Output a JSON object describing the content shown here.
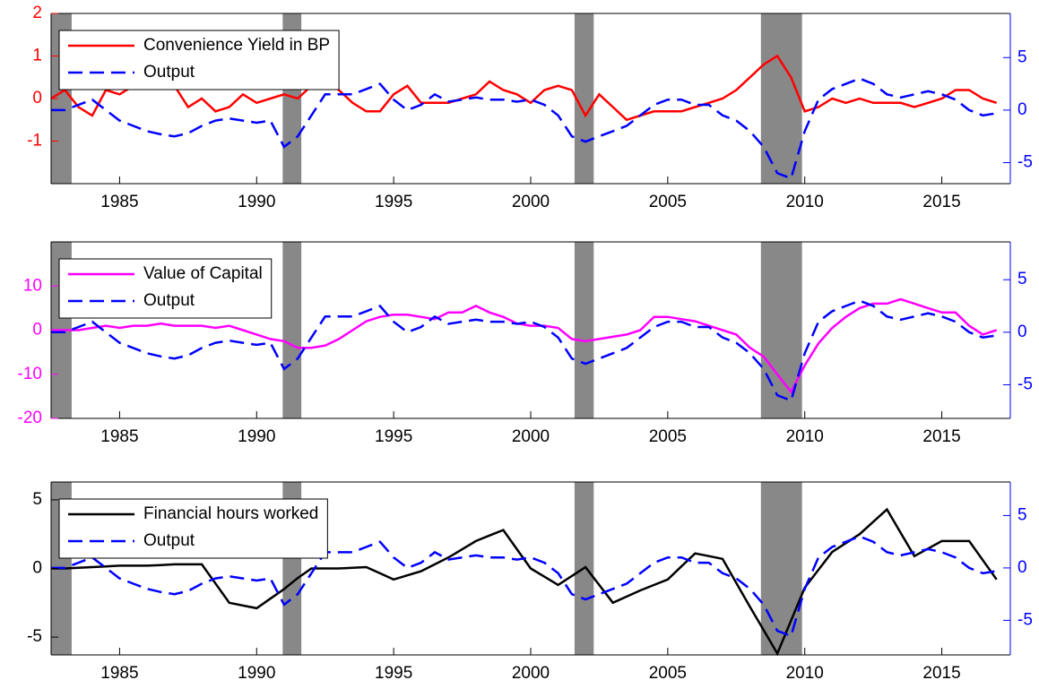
{
  "chart_data": [
    {
      "type": "line",
      "x": [
        1982.5,
        1983,
        1983.5,
        1984,
        1984.5,
        1985,
        1985.5,
        1986,
        1986.5,
        1987,
        1987.5,
        1988,
        1988.5,
        1989,
        1989.5,
        1990,
        1990.5,
        1991,
        1991.5,
        1992,
        1992.5,
        1993,
        1993.5,
        1994,
        1994.5,
        1995,
        1995.5,
        1996,
        1996.5,
        1997,
        1997.5,
        1998,
        1998.5,
        1999,
        1999.5,
        2000,
        2000.5,
        2001,
        2001.5,
        2002,
        2002.5,
        2003,
        2003.5,
        2004,
        2004.5,
        2005,
        2005.5,
        2006,
        2006.5,
        2007,
        2007.5,
        2008,
        2008.5,
        2009,
        2009.5,
        2010,
        2010.5,
        2011,
        2011.5,
        2012,
        2012.5,
        2013,
        2013.5,
        2014,
        2014.5,
        2015,
        2015.5,
        2016,
        2016.5,
        2017
      ],
      "xlim": [
        1982.5,
        2017.5
      ],
      "xticks": [
        1985,
        1990,
        1995,
        2000,
        2005,
        2010,
        2015
      ],
      "ylim": [
        -2,
        2
      ],
      "yticks": [
        -1,
        0,
        1,
        2
      ],
      "y2lim": [
        -7,
        9.2
      ],
      "y2ticks": [
        -5,
        0,
        5
      ],
      "shaded_periods": [
        [
          1982.5,
          1983.25
        ],
        [
          1990.95,
          1991.63
        ],
        [
          2001.6,
          2002.3
        ],
        [
          2008.4,
          2009.9
        ]
      ],
      "shade_color": "#888888",
      "legend": "upper left",
      "series": [
        {
          "name": "Convenience Yield in BP",
          "color": "#ff0000",
          "line_style": "solid",
          "values": [
            0,
            0.2,
            -0.2,
            -0.4,
            0.2,
            0.1,
            0.3,
            0.5,
            0.3,
            0.3,
            -0.2,
            0,
            -0.3,
            -0.2,
            0.1,
            -0.1,
            0,
            0.1,
            0,
            0.3,
            0.4,
            0.2,
            -0.1,
            -0.3,
            -0.3,
            0.1,
            0.3,
            -0.1,
            -0.1,
            -0.1,
            0,
            0.1,
            0.4,
            0.2,
            0.1,
            -0.1,
            0.2,
            0.3,
            0.2,
            -0.4,
            0.1,
            -0.2,
            -0.5,
            -0.4,
            -0.3,
            -0.3,
            -0.3,
            -0.2,
            -0.1,
            0,
            0.2,
            0.5,
            0.8,
            1.0,
            0.5,
            -0.3,
            -0.2,
            0,
            -0.1,
            0,
            -0.1,
            -0.1,
            -0.1,
            -0.2,
            -0.1,
            0,
            0.2,
            0.2,
            0,
            -0.1
          ]
        },
        {
          "name": "Output",
          "color": "#0000ff",
          "line_style": "dashed",
          "axis": "y2",
          "values": [
            0,
            0,
            0.5,
            1,
            0,
            -1,
            -1.5,
            -2,
            -2.3,
            -2.5,
            -2.2,
            -1.5,
            -1,
            -0.8,
            -1,
            -1.2,
            -1,
            -3.5,
            -2.5,
            -0.5,
            1.5,
            1.5,
            1.5,
            2,
            2.5,
            1,
            0,
            0.5,
            1.5,
            0.8,
            1,
            1.2,
            1,
            1,
            0.8,
            1,
            0.5,
            -0.5,
            -2.5,
            -3,
            -2.5,
            -2,
            -1.5,
            -0.5,
            0.5,
            1,
            1,
            0.5,
            0.5,
            -0.5,
            -1,
            -2,
            -3.5,
            -6,
            -6.5,
            -2,
            1,
            2,
            2.5,
            3,
            2.5,
            1.5,
            1.2,
            1.5,
            1.8,
            1.5,
            1,
            0,
            -0.5,
            -0.3
          ]
        }
      ]
    },
    {
      "type": "line",
      "x": [
        1982.5,
        1983,
        1983.5,
        1984,
        1984.5,
        1985,
        1985.5,
        1986,
        1986.5,
        1987,
        1987.5,
        1988,
        1988.5,
        1989,
        1989.5,
        1990,
        1990.5,
        1991,
        1991.5,
        1992,
        1992.5,
        1993,
        1993.5,
        1994,
        1994.5,
        1995,
        1995.5,
        1996,
        1996.5,
        1997,
        1997.5,
        1998,
        1998.5,
        1999,
        1999.5,
        2000,
        2000.5,
        2001,
        2001.5,
        2002,
        2002.5,
        2003,
        2003.5,
        2004,
        2004.5,
        2005,
        2005.5,
        2006,
        2006.5,
        2007,
        2007.5,
        2008,
        2008.5,
        2009,
        2009.5,
        2010,
        2010.5,
        2011,
        2011.5,
        2012,
        2012.5,
        2013,
        2013.5,
        2014,
        2014.5,
        2015,
        2015.5,
        2016,
        2016.5,
        2017
      ],
      "xlim": [
        1982.5,
        2017.5
      ],
      "xticks": [
        1985,
        1990,
        1995,
        2000,
        2005,
        2010,
        2015
      ],
      "ylim": [
        -20,
        20
      ],
      "yticks": [
        -20,
        -10,
        0,
        10
      ],
      "y2lim": [
        -8.2,
        8.6
      ],
      "y2ticks": [
        -5,
        0,
        5
      ],
      "shaded_periods": [
        [
          1982.5,
          1983.25
        ],
        [
          1990.95,
          1991.63
        ],
        [
          2001.6,
          2002.3
        ],
        [
          2008.4,
          2009.9
        ]
      ],
      "shade_color": "#888888",
      "legend": "upper left",
      "series": [
        {
          "name": "Value of Capital",
          "color": "#ff00ff",
          "line_style": "solid",
          "values": [
            0,
            0,
            0,
            0.5,
            1,
            0.5,
            1,
            1,
            1.5,
            1,
            1,
            1,
            0.5,
            1,
            0,
            -1,
            -2,
            -2.5,
            -4,
            -4,
            -3.5,
            -2,
            0,
            2,
            3,
            3.5,
            3.5,
            3,
            2.5,
            4,
            4,
            5.5,
            4,
            3,
            1.5,
            1,
            1,
            0.5,
            -2,
            -2.5,
            -2,
            -1.5,
            -1,
            0,
            3,
            3,
            2.5,
            2,
            1,
            0,
            -1,
            -4,
            -6,
            -10,
            -14,
            -8,
            -3,
            0.5,
            3,
            5,
            6,
            6,
            7,
            6,
            5,
            4,
            4,
            1,
            -1,
            0
          ]
        },
        {
          "name": "Output",
          "color": "#0000ff",
          "line_style": "dashed",
          "axis": "y2",
          "values": [
            0,
            0,
            0.5,
            1,
            0,
            -1,
            -1.5,
            -2,
            -2.3,
            -2.5,
            -2.2,
            -1.5,
            -1,
            -0.8,
            -1,
            -1.2,
            -1,
            -3.5,
            -2.5,
            -0.5,
            1.5,
            1.5,
            1.5,
            2,
            2.5,
            1,
            0,
            0.5,
            1.5,
            0.8,
            1,
            1.2,
            1,
            1,
            0.8,
            1,
            0.5,
            -0.5,
            -2.5,
            -3,
            -2.5,
            -2,
            -1.5,
            -0.5,
            0.5,
            1,
            1,
            0.5,
            0.5,
            -0.5,
            -1,
            -2,
            -3.5,
            -6,
            -6.5,
            -2,
            1,
            2,
            2.5,
            3,
            2.5,
            1.5,
            1.2,
            1.5,
            1.8,
            1.5,
            1,
            0,
            -0.5,
            -0.3
          ]
        }
      ]
    },
    {
      "type": "line",
      "x": [
        1982.5,
        1983,
        1983.5,
        1984,
        1984.5,
        1985,
        1985.5,
        1986,
        1986.5,
        1987,
        1987.5,
        1988,
        1988.5,
        1989,
        1989.5,
        1990,
        1990.5,
        1991,
        1991.5,
        1992,
        1992.5,
        1993,
        1993.5,
        1994,
        1994.5,
        1995,
        1995.5,
        1996,
        1996.5,
        1997,
        1997.5,
        1998,
        1998.5,
        1999,
        1999.5,
        2000,
        2000.5,
        2001,
        2001.5,
        2002,
        2002.5,
        2003,
        2003.5,
        2004,
        2004.5,
        2005,
        2005.5,
        2006,
        2006.5,
        2007,
        2007.5,
        2008,
        2008.5,
        2009,
        2009.5,
        2010,
        2010.5,
        2011,
        2011.5,
        2012,
        2012.5,
        2013,
        2013.5,
        2014,
        2014.5,
        2015,
        2015.5,
        2016,
        2016.5,
        2017
      ],
      "xlim": [
        1982.5,
        2017.5
      ],
      "xticks": [
        1985,
        1990,
        1995,
        2000,
        2005,
        2010,
        2015
      ],
      "ylim": [
        -6.3,
        6.3
      ],
      "yticks": [
        -5,
        0,
        5
      ],
      "y2lim": [
        -8.3,
        8.2
      ],
      "y2ticks": [
        -5,
        0,
        5
      ],
      "shaded_periods": [
        [
          1982.5,
          1983.25
        ],
        [
          1990.95,
          1991.63
        ],
        [
          2001.6,
          2002.3
        ],
        [
          2008.4,
          2009.9
        ]
      ],
      "shade_color": "#888888",
      "legend": "upper left",
      "series": [
        {
          "name": "Financial hours worked",
          "color": "#000000",
          "line_style": "solid",
          "values": [
            0,
            0,
            0.05,
            0.1,
            0.15,
            0.2,
            0.2,
            0.2,
            0.25,
            0.3,
            0.3,
            0.3,
            -1.1,
            -2.5,
            -2.7,
            -2.9,
            -2.2,
            -1.5,
            -0.7,
            0,
            0,
            0,
            0.05,
            0.1,
            -0.35,
            -0.8,
            -0.5,
            -0.2,
            0.3,
            0.8,
            1.4,
            2,
            2.4,
            2.8,
            1.4,
            0,
            -0.6,
            -1.2,
            -0.55,
            0.1,
            -1.2,
            -2.5,
            -2.05,
            -1.6,
            -1.2,
            -0.8,
            0.15,
            1.1,
            0.9,
            0.7,
            -1.05,
            -2.8,
            -4.5,
            -6.2,
            -3.8,
            -1.4,
            -0.1,
            1.2,
            1.85,
            2.5,
            3.4,
            4.3,
            2.6,
            0.9,
            1.45,
            2,
            2,
            2,
            0.6,
            -0.8
          ]
        },
        {
          "name": "Output",
          "color": "#0000ff",
          "line_style": "dashed",
          "axis": "y2",
          "values": [
            0,
            0,
            0.5,
            1,
            0,
            -1,
            -1.5,
            -2,
            -2.3,
            -2.5,
            -2.2,
            -1.5,
            -1,
            -0.8,
            -1,
            -1.2,
            -1,
            -3.5,
            -2.5,
            -0.5,
            1.5,
            1.5,
            1.5,
            2,
            2.5,
            1,
            0,
            0.5,
            1.5,
            0.8,
            1,
            1.2,
            1,
            1,
            0.8,
            1,
            0.5,
            -0.5,
            -2.5,
            -3,
            -2.5,
            -2,
            -1.5,
            -0.5,
            0.5,
            1,
            1,
            0.5,
            0.5,
            -0.5,
            -1,
            -2,
            -3.5,
            -6,
            -6.5,
            -2,
            1,
            2,
            2.5,
            3,
            2.5,
            1.5,
            1.2,
            1.5,
            1.8,
            1.5,
            1,
            0,
            -0.5,
            -0.3
          ]
        }
      ]
    }
  ]
}
